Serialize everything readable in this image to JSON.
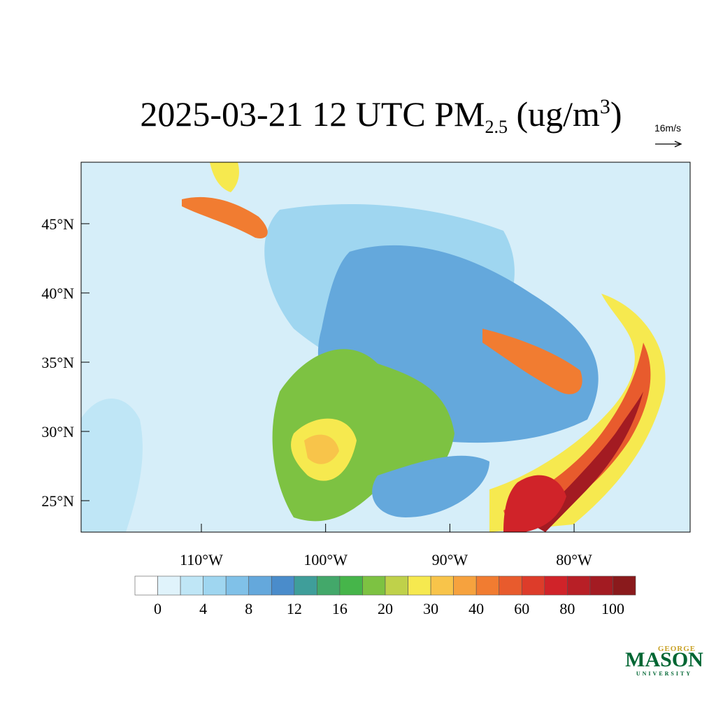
{
  "title": {
    "main": "2025-03-21 12 UTC PM",
    "sub": "2.5",
    "unit": " (ug/m",
    "sup": "3",
    "close": ")"
  },
  "wind_reference": "16m/s",
  "map": {
    "xlim": [
      -119.68,
      -70.66
    ],
    "ylim": [
      22.73,
      49.44
    ],
    "xticks": [
      {
        "value": -110,
        "label": "110°W"
      },
      {
        "value": -100,
        "label": "100°W"
      },
      {
        "value": -90,
        "label": "90°W"
      },
      {
        "value": -80,
        "label": "80°W"
      }
    ],
    "yticks": [
      {
        "value": 45,
        "label": "45°N"
      },
      {
        "value": 40,
        "label": "40°N"
      },
      {
        "value": 35,
        "label": "35°N"
      },
      {
        "value": 30,
        "label": "30°N"
      },
      {
        "value": 25,
        "label": "25°N"
      }
    ]
  },
  "colorbar": {
    "colors": [
      "#ffffff",
      "#e0f3fb",
      "#bfe6f6",
      "#9fd6f0",
      "#80c1e8",
      "#64a8dc",
      "#4a8ccb",
      "#3f9e9a",
      "#43a86a",
      "#46b54a",
      "#7dc242",
      "#bfd14a",
      "#f6e94f",
      "#f8c44a",
      "#f6a23e",
      "#f17c31",
      "#e85b2d",
      "#dd3c2a",
      "#d02329",
      "#b81f26",
      "#a31b22",
      "#8a1a1c"
    ],
    "ticks": [
      0,
      4,
      8,
      12,
      16,
      20,
      30,
      40,
      60,
      80,
      100
    ]
  },
  "logo": {
    "top": "GEORGE",
    "main": "MASON",
    "bottom": "UNIVERSITY"
  }
}
